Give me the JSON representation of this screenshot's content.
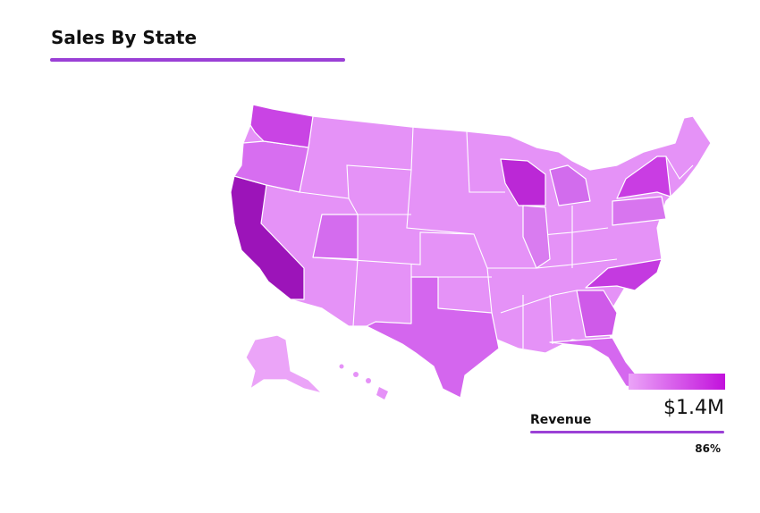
{
  "header": {
    "title": "Sales By State"
  },
  "legend": {
    "max_label": "$1.4M"
  },
  "metric": {
    "label": "Revenue",
    "value": "86%"
  }
}
